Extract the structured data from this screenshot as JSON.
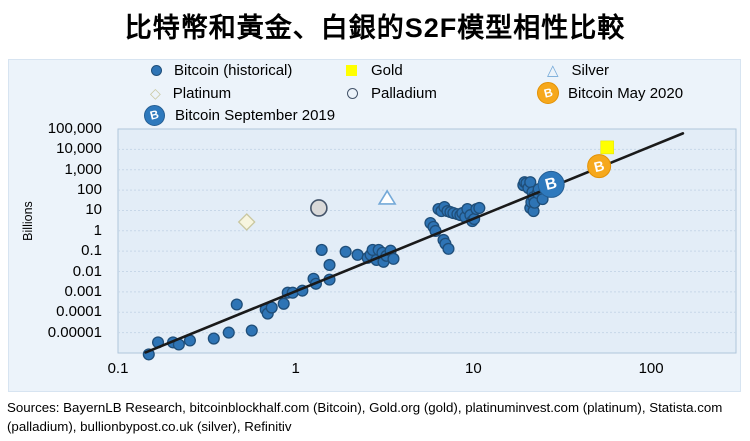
{
  "title": "比特幣和黃金、白銀的S2F模型相性比較",
  "legend": {
    "bitcoin_historical": "Bitcoin (historical)",
    "gold": "Gold",
    "silver": "Silver",
    "platinum": "Platinum",
    "palladium": "Palladium",
    "bitcoin_may_2020": "Bitcoin May 2020",
    "bitcoin_september_2019": "Bitcoin September 2019"
  },
  "colors": {
    "panel_bg": "#ecf3fa",
    "plot_bg": "#e3edf7",
    "gridline": "#c7d7e8",
    "plot_border": "#afc6db",
    "bitcoin_dot_fill": "#2e74b5",
    "bitcoin_dot_stroke": "#1f4e79",
    "gold": "#ffff00",
    "silver_outline": "#74a9d8",
    "platinum_fill": "#fbfaе8",
    "platinum_stroke": "#c9c7a0",
    "palladium_fill": "#d9d9d9",
    "palladium_stroke": "#44546a",
    "btc_sep_2019": "#2e79bd",
    "btc_may_2020": "#f6a81c",
    "trendline": "#1a1a1a"
  },
  "chart_data": {
    "type": "scatter",
    "x_axis": {
      "scale": "log",
      "label": "",
      "ticks": [
        "0.1",
        "1",
        "10",
        "100"
      ],
      "range": [
        0.1,
        300
      ]
    },
    "y_axis": {
      "scale": "log",
      "label": "Billions",
      "ticks": [
        "100,000",
        "10,000",
        "1,000",
        "100",
        "10",
        "1",
        "0.1",
        "0.01",
        "0.001",
        "0.0001",
        "0.00001"
      ],
      "range": [
        1e-06,
        100000
      ]
    },
    "grid": "horizontal-dashed",
    "legend_position": "top",
    "series": [
      {
        "name": "Bitcoin (historical)",
        "marker": "dot",
        "color": "#2e74b5",
        "points": [
          [
            0.149,
            8.5e-07
          ],
          [
            0.168,
            3.3e-06
          ],
          [
            0.204,
            3.3e-06
          ],
          [
            0.22,
            2.6e-06
          ],
          [
            0.254,
            4.1e-06
          ],
          [
            0.346,
            5.1e-06
          ],
          [
            0.42,
            1e-05
          ],
          [
            0.566,
            1.26e-05
          ],
          [
            0.466,
            0.00024
          ],
          [
            0.678,
            0.000135
          ],
          [
            0.696,
            8.6e-05
          ],
          [
            0.733,
            0.00017
          ],
          [
            0.856,
            0.00026
          ],
          [
            0.902,
            0.00091
          ],
          [
            0.962,
            0.00091
          ],
          [
            1.09,
            0.00115
          ],
          [
            1.26,
            0.0044
          ],
          [
            1.3,
            0.0025
          ],
          [
            1.4,
            0.115
          ],
          [
            1.55,
            0.021
          ],
          [
            1.55,
            0.004
          ],
          [
            1.91,
            0.093
          ],
          [
            2.23,
            0.066
          ],
          [
            2.54,
            0.047
          ],
          [
            2.64,
            0.066
          ],
          [
            2.71,
            0.115
          ],
          [
            2.85,
            0.037
          ],
          [
            2.93,
            0.115
          ],
          [
            3.08,
            0.083
          ],
          [
            3.12,
            0.03
          ],
          [
            3.24,
            0.059
          ],
          [
            3.42,
            0.105
          ],
          [
            3.55,
            0.042
          ],
          [
            5.73,
            2.4
          ],
          [
            5.96,
            1.55
          ],
          [
            6.12,
            0.98
          ],
          [
            6.79,
            0.355
          ],
          [
            6.96,
            0.23
          ],
          [
            7.24,
            0.13
          ],
          [
            6.36,
            11.7
          ],
          [
            6.61,
            9.3
          ],
          [
            6.87,
            14.7
          ],
          [
            7.15,
            9.3
          ],
          [
            7.43,
            8.3
          ],
          [
            7.72,
            7.4
          ],
          [
            8.13,
            6.6
          ],
          [
            8.45,
            5.9
          ],
          [
            8.67,
            7.4
          ],
          [
            9.0,
            4.7
          ],
          [
            9.25,
            11.7
          ],
          [
            9.62,
            5.9
          ],
          [
            9.86,
            3.0
          ],
          [
            10.1,
            3.8
          ],
          [
            10.4,
            11.7
          ],
          [
            10.8,
            13.2
          ],
          [
            19.1,
            174
          ],
          [
            19.4,
            245
          ],
          [
            19.9,
            219
          ],
          [
            20.4,
            126
          ],
          [
            20.9,
            245
          ],
          [
            20.9,
            13.2
          ],
          [
            21.2,
            25.7
          ],
          [
            21.5,
            79
          ],
          [
            21.8,
            45
          ],
          [
            21.8,
            9.3
          ],
          [
            22.1,
            24
          ],
          [
            23.0,
            72
          ],
          [
            23.3,
            111
          ],
          [
            24.5,
            36
          ]
        ]
      },
      {
        "name": "Gold",
        "marker": "square",
        "color": "#ffff00",
        "points": [
          [
            56.6,
            12500
          ]
        ]
      },
      {
        "name": "Silver",
        "marker": "triangle",
        "color": "#74a9d8",
        "points": [
          [
            3.27,
            41
          ]
        ]
      },
      {
        "name": "Platinum",
        "marker": "diamond",
        "color": "#c9c7a0",
        "points": [
          [
            0.53,
            2.7
          ]
        ]
      },
      {
        "name": "Palladium",
        "marker": "circle-outline",
        "color": "#44546a",
        "points": [
          [
            1.35,
            13.2
          ]
        ]
      },
      {
        "name": "Bitcoin September 2019",
        "marker": "bitcoin-badge",
        "color": "#2e79bd",
        "points": [
          [
            27.4,
            190
          ]
        ]
      },
      {
        "name": "Bitcoin May 2020",
        "marker": "bitcoin-badge",
        "color": "#f6a81c",
        "points": [
          [
            51,
            1500
          ]
        ]
      }
    ],
    "trendline": {
      "from": [
        0.143,
        1.06e-06
      ],
      "to": [
        151,
        61000
      ],
      "color": "#1a1a1a"
    }
  },
  "footer": {
    "line1": "Sources: BayernLB Research, bitcoinblockhalf.com (Bitcoin), Gold.org (gold), platinuminvest.com (platinum), Statista.com",
    "line2": "(palladium), bullionbypost.co.uk (silver), Refinitiv"
  }
}
